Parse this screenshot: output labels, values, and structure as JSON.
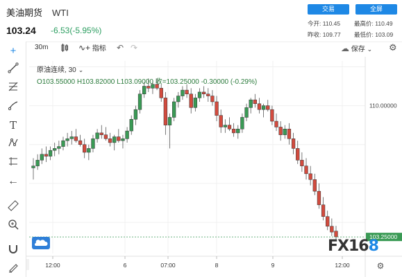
{
  "header": {
    "instrument": "美油期货",
    "symbol": "WTI",
    "price": "103.24",
    "change": "-6.53(-5.95%)",
    "trade_button": "交易",
    "fullscreen_button": "全屏",
    "stats": {
      "today_open_label": "今开:",
      "today_open": "110.45",
      "high_label": "最高价:",
      "high": "110.49",
      "prev_close_label": "昨收:",
      "prev_close": "109.77",
      "low_label": "最低价:",
      "low": "103.09"
    }
  },
  "toolbar": {
    "interval": "30m",
    "indicators_label": "指标",
    "save_label": "保存"
  },
  "legend": {
    "series_name": "原油连续",
    "interval": "30",
    "ohlc": "O103.55000  H103.82000  L103.09000  收=103.25000  -0.30000  (-0.29%)"
  },
  "chart_data": {
    "type": "candlestick",
    "price_axis_label": "110.00000",
    "last_price_label": "103.25000",
    "x_tick_labels": [
      "12:00",
      "6",
      "07:00",
      "8",
      "9",
      "12:00"
    ],
    "candles": [
      [
        106.8,
        107.3,
        106.2,
        106.9
      ],
      [
        106.9,
        107.5,
        106.7,
        107.2
      ],
      [
        107.2,
        107.8,
        107.0,
        107.5
      ],
      [
        107.5,
        107.9,
        107.1,
        107.4
      ],
      [
        107.4,
        107.9,
        107.2,
        107.7
      ],
      [
        107.7,
        108.1,
        107.4,
        107.8
      ],
      [
        107.8,
        108.2,
        107.5,
        107.9
      ],
      [
        107.9,
        108.4,
        107.7,
        108.2
      ],
      [
        108.2,
        108.6,
        107.9,
        108.3
      ],
      [
        108.3,
        108.7,
        108.0,
        108.4
      ],
      [
        108.4,
        108.8,
        108.1,
        108.2
      ],
      [
        108.2,
        108.5,
        107.9,
        108.0
      ],
      [
        108.0,
        108.3,
        107.3,
        107.6
      ],
      [
        107.6,
        108.0,
        107.2,
        107.8
      ],
      [
        107.8,
        108.5,
        107.6,
        108.3
      ],
      [
        108.3,
        108.8,
        108.1,
        108.6
      ],
      [
        108.6,
        109.0,
        108.3,
        108.5
      ],
      [
        108.5,
        108.9,
        108.2,
        108.3
      ],
      [
        108.3,
        108.6,
        107.9,
        108.1
      ],
      [
        108.1,
        108.5,
        107.7,
        108.4
      ],
      [
        108.4,
        108.8,
        108.1,
        108.2
      ],
      [
        108.2,
        108.5,
        107.8,
        108.3
      ],
      [
        108.3,
        108.9,
        108.1,
        108.7
      ],
      [
        108.7,
        109.5,
        108.5,
        109.3
      ],
      [
        109.3,
        110.0,
        109.0,
        109.8
      ],
      [
        109.8,
        110.8,
        109.6,
        110.6
      ],
      [
        110.6,
        111.2,
        110.4,
        111.0
      ],
      [
        111.0,
        111.4,
        110.7,
        110.9
      ],
      [
        110.9,
        111.3,
        110.6,
        111.1
      ],
      [
        111.1,
        111.4,
        110.8,
        110.9
      ],
      [
        110.9,
        111.1,
        110.2,
        110.4
      ],
      [
        110.4,
        110.7,
        108.5,
        109.0
      ],
      [
        109.0,
        109.6,
        107.8,
        109.4
      ],
      [
        109.4,
        110.4,
        109.2,
        110.2
      ],
      [
        110.2,
        110.7,
        109.9,
        110.5
      ],
      [
        110.5,
        111.0,
        110.3,
        110.8
      ],
      [
        110.8,
        111.1,
        110.4,
        110.6
      ],
      [
        110.6,
        110.9,
        109.6,
        109.9
      ],
      [
        109.9,
        110.6,
        109.7,
        110.4
      ],
      [
        110.4,
        110.9,
        110.2,
        110.7
      ],
      [
        110.7,
        111.0,
        110.4,
        110.6
      ],
      [
        110.6,
        110.9,
        110.2,
        110.5
      ],
      [
        110.5,
        110.8,
        110.0,
        110.2
      ],
      [
        110.2,
        110.5,
        109.2,
        109.5
      ],
      [
        109.5,
        109.8,
        108.6,
        108.9
      ],
      [
        108.9,
        109.3,
        108.6,
        109.0
      ],
      [
        109.0,
        109.4,
        108.7,
        108.8
      ],
      [
        108.8,
        109.1,
        108.4,
        108.6
      ],
      [
        108.6,
        109.0,
        108.3,
        108.8
      ],
      [
        108.8,
        109.6,
        108.6,
        109.4
      ],
      [
        109.4,
        110.1,
        109.2,
        109.9
      ],
      [
        109.9,
        110.4,
        109.6,
        110.3
      ],
      [
        110.3,
        110.6,
        109.9,
        110.1
      ],
      [
        110.1,
        110.4,
        109.6,
        109.8
      ],
      [
        109.8,
        110.1,
        109.4,
        110.0
      ],
      [
        110.0,
        110.3,
        109.7,
        109.8
      ],
      [
        109.8,
        110.0,
        109.0,
        109.2
      ],
      [
        109.2,
        109.6,
        108.7,
        108.9
      ],
      [
        108.9,
        109.2,
        108.2,
        108.5
      ],
      [
        108.5,
        109.0,
        108.3,
        108.8
      ],
      [
        108.8,
        109.1,
        108.0,
        108.3
      ],
      [
        108.3,
        108.6,
        107.5,
        107.8
      ],
      [
        107.8,
        108.2,
        107.0,
        107.2
      ],
      [
        107.2,
        107.6,
        106.6,
        106.9
      ],
      [
        106.9,
        107.3,
        106.2,
        106.5
      ],
      [
        106.5,
        106.9,
        105.9,
        106.2
      ],
      [
        106.2,
        106.5,
        105.4,
        105.6
      ],
      [
        105.6,
        106.0,
        104.7,
        104.9
      ],
      [
        104.9,
        105.3,
        104.1,
        104.3
      ],
      [
        104.3,
        104.6,
        103.6,
        103.8
      ],
      [
        103.8,
        104.2,
        103.3,
        103.5
      ],
      [
        103.55,
        103.82,
        103.09,
        103.25
      ]
    ]
  }
}
